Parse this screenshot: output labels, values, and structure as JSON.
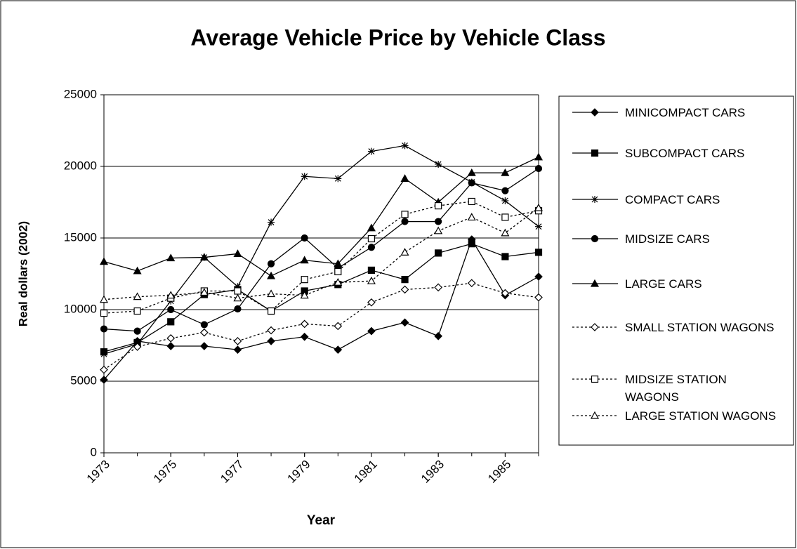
{
  "chart_data": {
    "type": "line",
    "title": "Average Vehicle Price by Vehicle Class",
    "x_label": "Year",
    "y_label": "Real dollars (2002)",
    "x": [
      1973,
      1974,
      1975,
      1976,
      1977,
      1978,
      1979,
      1980,
      1981,
      1982,
      1983,
      1984,
      1985,
      1986
    ],
    "xlim": [
      1973,
      1986
    ],
    "xticks": [
      1973,
      1975,
      1977,
      1979,
      1981,
      1983,
      1985
    ],
    "ylim": [
      0,
      25000
    ],
    "yticks": [
      0,
      5000,
      10000,
      15000,
      20000,
      25000
    ],
    "grid": true,
    "legend": "right",
    "series": [
      {
        "name": "MINICOMPACT CARS",
        "color": "#000000",
        "marker": "diamond",
        "filled": true,
        "dashed": false,
        "values": [
          5100,
          7800,
          7450,
          7450,
          7200,
          7800,
          8100,
          7200,
          8500,
          9100,
          8150,
          14900,
          11000,
          12300
        ]
      },
      {
        "name": "SUBCOMPACT CARS",
        "color": "#000000",
        "marker": "square",
        "filled": true,
        "dashed": false,
        "values": [
          7050,
          7700,
          9150,
          11050,
          11400,
          9900,
          11300,
          11750,
          12750,
          12100,
          13950,
          14600,
          13700,
          14000
        ]
      },
      {
        "name": "COMPACT CARS",
        "color": "#000000",
        "marker": "star",
        "filled": true,
        "dashed": false,
        "values": [
          6900,
          7600,
          10600,
          13650,
          11600,
          16100,
          19300,
          19150,
          21050,
          21450,
          20150,
          18900,
          17600,
          15800
        ]
      },
      {
        "name": "MIDSIZE CARS",
        "color": "#000000",
        "marker": "circle",
        "filled": true,
        "dashed": false,
        "values": [
          8650,
          8500,
          10000,
          8950,
          10050,
          13200,
          15000,
          12900,
          14350,
          16150,
          16150,
          18850,
          18300,
          19850
        ]
      },
      {
        "name": "LARGE CARS",
        "color": "#000000",
        "marker": "triangle",
        "filled": true,
        "dashed": false,
        "values": [
          13350,
          12700,
          13600,
          13650,
          13900,
          12350,
          13450,
          13200,
          15700,
          19150,
          17500,
          19550,
          19550,
          20650
        ]
      },
      {
        "name": "SMALL STATION WAGONS",
        "color": "#000000",
        "marker": "diamond",
        "filled": false,
        "dashed": true,
        "values": [
          5800,
          7400,
          8000,
          8400,
          7800,
          8550,
          9000,
          8850,
          10500,
          11400,
          11550,
          11850,
          11150,
          10850
        ]
      },
      {
        "name": "MIDSIZE STATION WAGONS",
        "color": "#000000",
        "marker": "square",
        "filled": false,
        "dashed": true,
        "values": [
          9750,
          9900,
          10800,
          11300,
          11300,
          9900,
          12100,
          12650,
          14950,
          16650,
          17250,
          17550,
          16450,
          16900
        ]
      },
      {
        "name": "LARGE STATION WAGONS",
        "color": "#000000",
        "marker": "triangle",
        "filled": false,
        "dashed": true,
        "values": [
          10700,
          10900,
          11000,
          11200,
          10800,
          11100,
          11000,
          11900,
          12000,
          14000,
          15500,
          16450,
          15350,
          17100
        ]
      }
    ]
  }
}
